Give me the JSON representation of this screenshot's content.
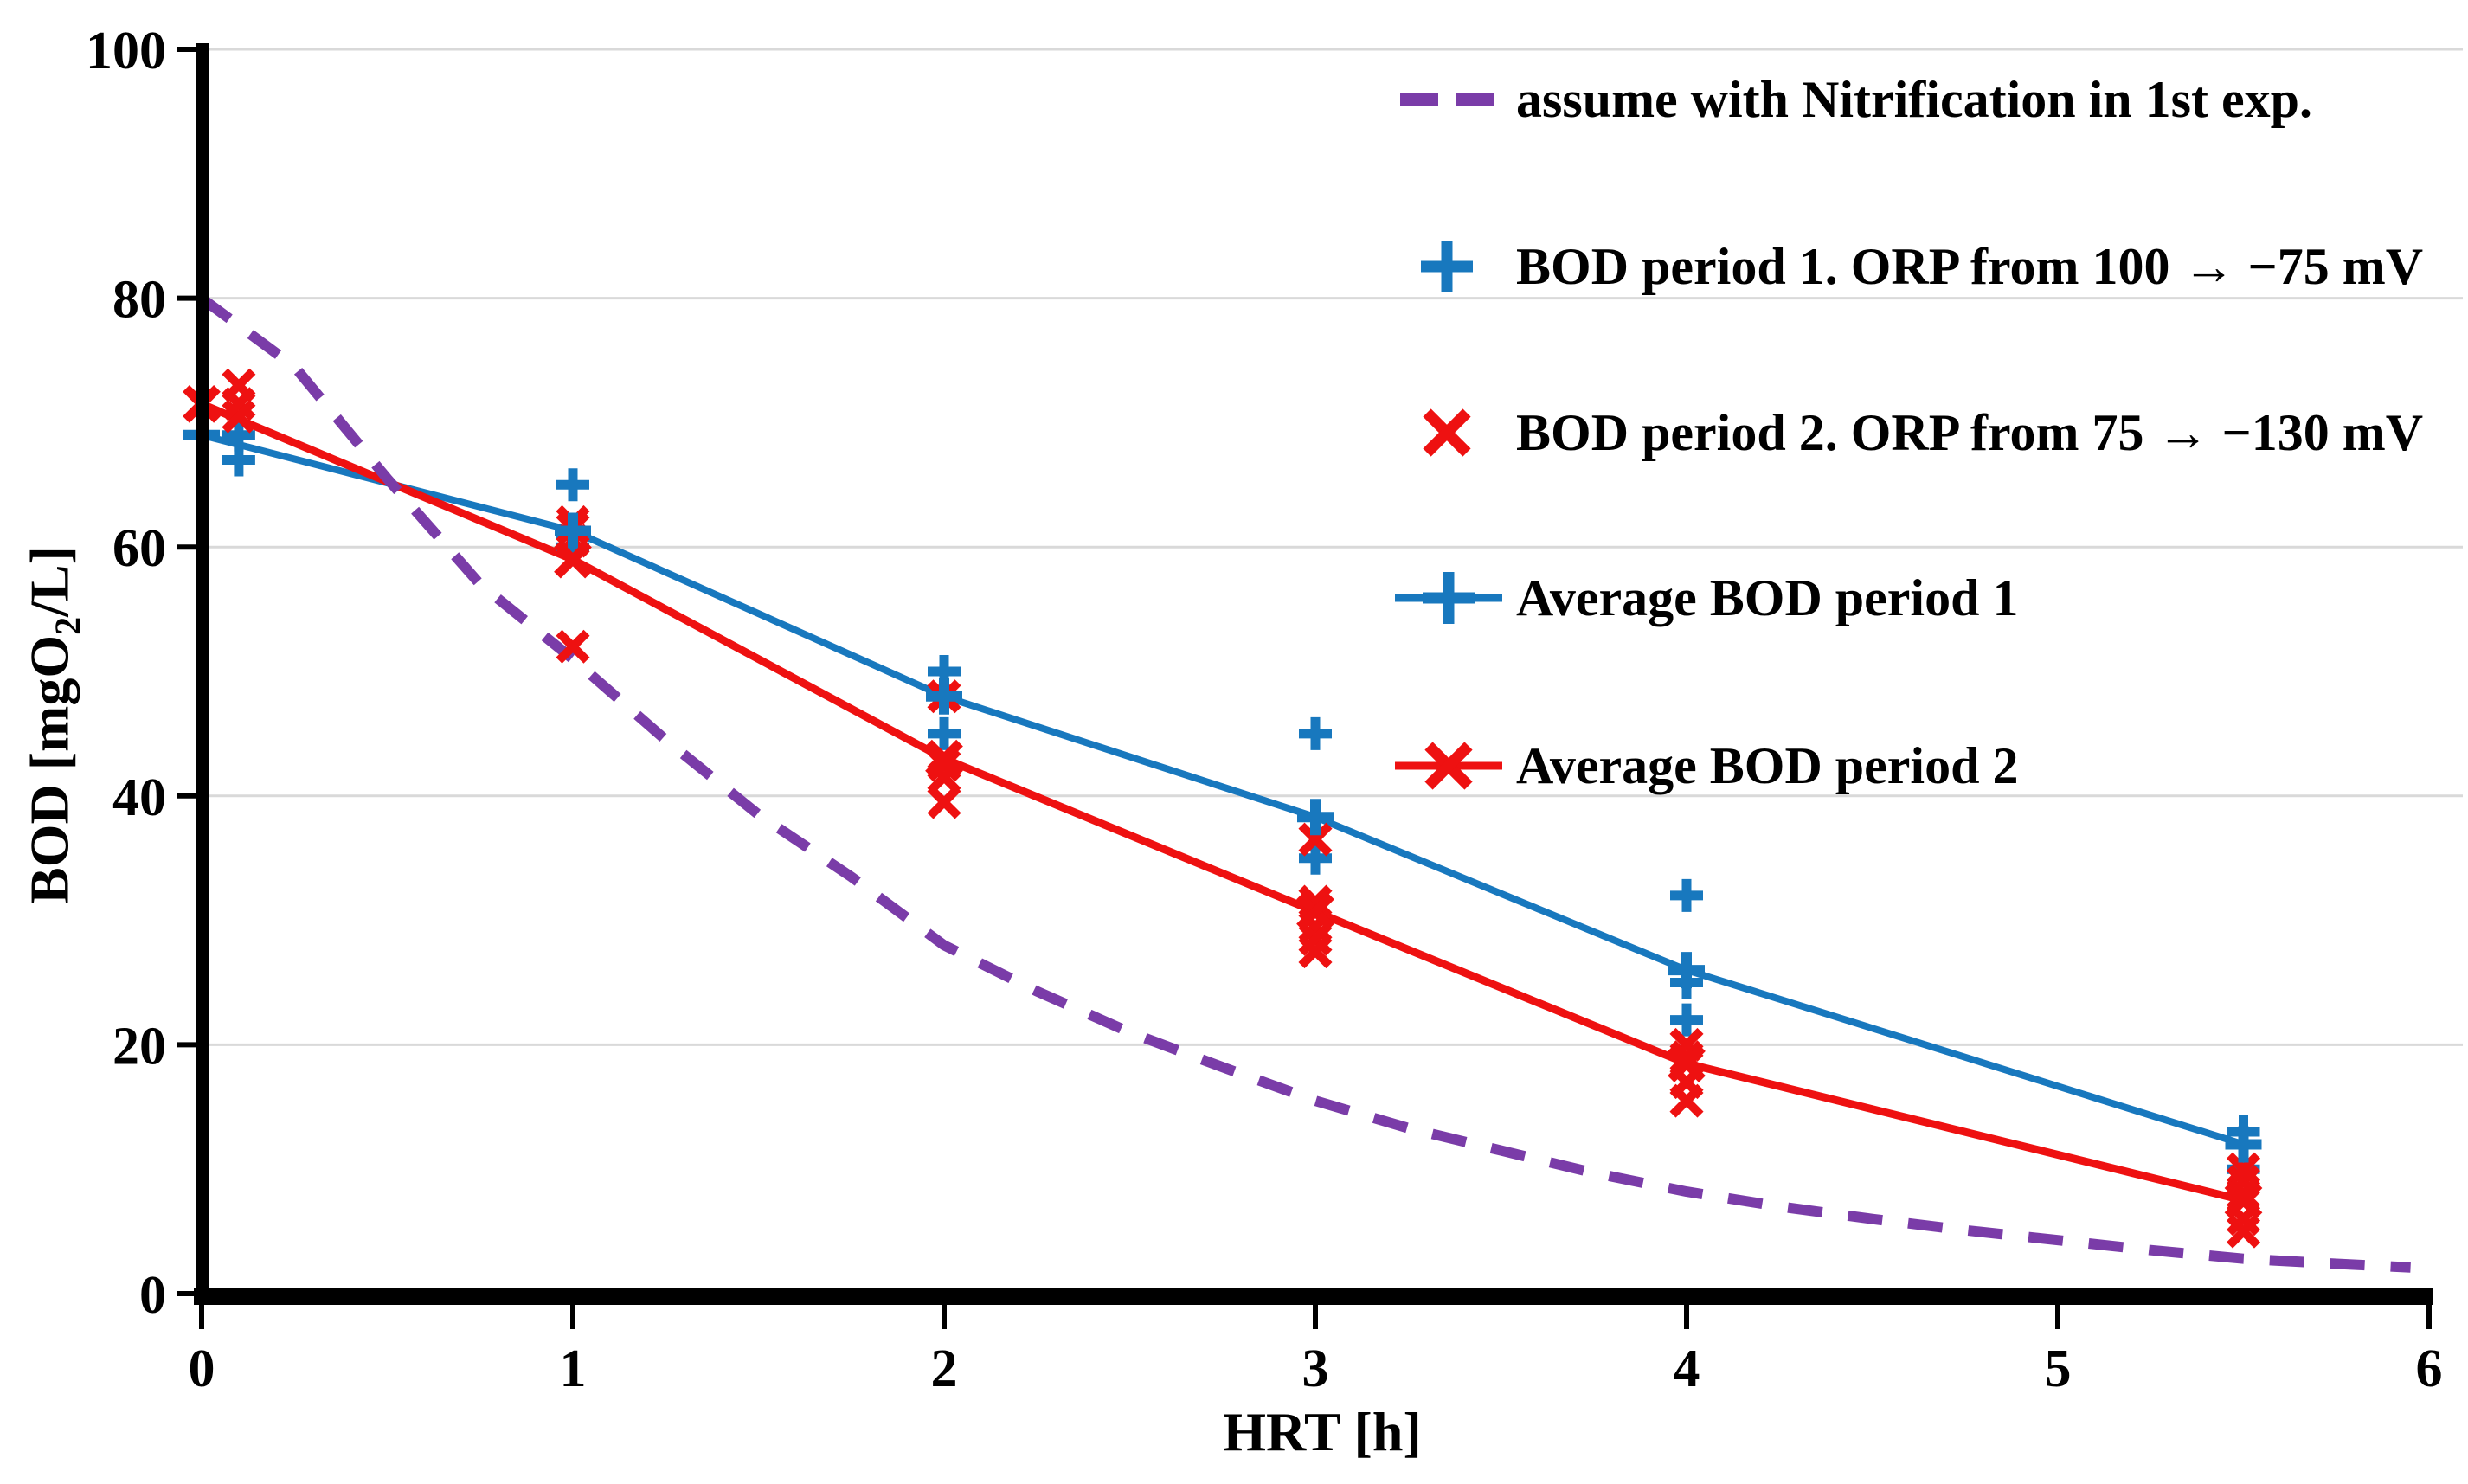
{
  "chart_data": {
    "type": "line",
    "title": "",
    "xlabel": "HRT [h]",
    "ylabel": "BOD [mgO2/L]",
    "ylabel_pre": "BOD [mgO",
    "ylabel_sub": "2",
    "ylabel_post": "/L]",
    "xlim": [
      0,
      6
    ],
    "ylim": [
      0,
      100
    ],
    "x_ticks": [
      "0",
      "1",
      "2",
      "3",
      "4",
      "5",
      "6"
    ],
    "y_ticks": [
      "0",
      "20",
      "40",
      "60",
      "80",
      "100"
    ],
    "grid": "horizontal",
    "legend_position": "inside-top-right",
    "colors": {
      "period1_blue": "#1878BE",
      "period2_red": "#EE1111",
      "nitrification_purple": "#7A3CA8",
      "gridline_gray": "#D9D9D9",
      "axis_black": "#000000"
    },
    "series": [
      {
        "id": "nitrification",
        "name": "assume with Nitrification in 1st exp.",
        "type": "line",
        "style": "dashed",
        "marker": "none",
        "color": "#7A3CA8",
        "points": [
          [
            0,
            80
          ],
          [
            0.25,
            74.5
          ],
          [
            0.5,
            65.5
          ],
          [
            0.75,
            57
          ],
          [
            1,
            51
          ],
          [
            1.25,
            44.5
          ],
          [
            1.5,
            38.5
          ],
          [
            1.75,
            33.5
          ],
          [
            2,
            28
          ],
          [
            2.25,
            24.3
          ],
          [
            2.5,
            21
          ],
          [
            2.75,
            18.2
          ],
          [
            3,
            15.5
          ],
          [
            3.25,
            13.3
          ],
          [
            3.5,
            11.5
          ],
          [
            3.75,
            9.7
          ],
          [
            4,
            8.2
          ],
          [
            4.25,
            7
          ],
          [
            4.5,
            6
          ],
          [
            4.75,
            5.1
          ],
          [
            5,
            4.3
          ],
          [
            5.25,
            3.5
          ],
          [
            5.5,
            2.8
          ],
          [
            5.75,
            2.4
          ],
          [
            5.95,
            2.1
          ]
        ]
      },
      {
        "id": "bod-period-1",
        "name": "BOD period 1. ORP from 100 → −75 mV",
        "type": "scatter",
        "style": "none",
        "marker": "plus",
        "color": "#1878BE",
        "points": [
          [
            0,
            69
          ],
          [
            0.1,
            69
          ],
          [
            0.1,
            67
          ],
          [
            1,
            65
          ],
          [
            1,
            61
          ],
          [
            1,
            60
          ],
          [
            2,
            50
          ],
          [
            2,
            45
          ],
          [
            3,
            45
          ],
          [
            3,
            35
          ],
          [
            4,
            32
          ],
          [
            4,
            25
          ],
          [
            4,
            22
          ],
          [
            5.5,
            13
          ],
          [
            5.5,
            10
          ]
        ]
      },
      {
        "id": "bod-period-2",
        "name": "BOD period 2. ORP from 75 → −130 mV",
        "type": "scatter",
        "style": "none",
        "marker": "cross",
        "color": "#EE1111",
        "points": [
          [
            0,
            71.5
          ],
          [
            0.1,
            73
          ],
          [
            0.1,
            71.5
          ],
          [
            0.1,
            70.5
          ],
          [
            1,
            62
          ],
          [
            1,
            61.5
          ],
          [
            1,
            60.5
          ],
          [
            1,
            59
          ],
          [
            1,
            52
          ],
          [
            2,
            48
          ],
          [
            2,
            42.5
          ],
          [
            2,
            41.5
          ],
          [
            2,
            39.5
          ],
          [
            3,
            36.5
          ],
          [
            3,
            31.5
          ],
          [
            3,
            29.5
          ],
          [
            3,
            28.5
          ],
          [
            3,
            27.5
          ],
          [
            4,
            20
          ],
          [
            4,
            19
          ],
          [
            4,
            18.5
          ],
          [
            4,
            17
          ],
          [
            4,
            15.5
          ],
          [
            5.5,
            10
          ],
          [
            5.5,
            9
          ],
          [
            5.5,
            8
          ],
          [
            5.5,
            6
          ],
          [
            5.5,
            5
          ]
        ]
      },
      {
        "id": "average-bod-period-1",
        "name": "Average BOD period 1",
        "type": "line",
        "style": "solid",
        "marker": "plus",
        "color": "#1878BE",
        "points": [
          [
            0,
            69
          ],
          [
            1,
            61.3
          ],
          [
            2,
            48
          ],
          [
            3,
            38.3
          ],
          [
            4,
            26
          ],
          [
            5.5,
            12
          ]
        ]
      },
      {
        "id": "average-bod-period-2",
        "name": "Average BOD period 2",
        "type": "line",
        "style": "solid",
        "marker": "cross",
        "color": "#EE1111",
        "points": [
          [
            0,
            71.5
          ],
          [
            1,
            59
          ],
          [
            2,
            43
          ],
          [
            3,
            30.7
          ],
          [
            4,
            18.5
          ],
          [
            5.5,
            7.5
          ]
        ]
      }
    ]
  }
}
